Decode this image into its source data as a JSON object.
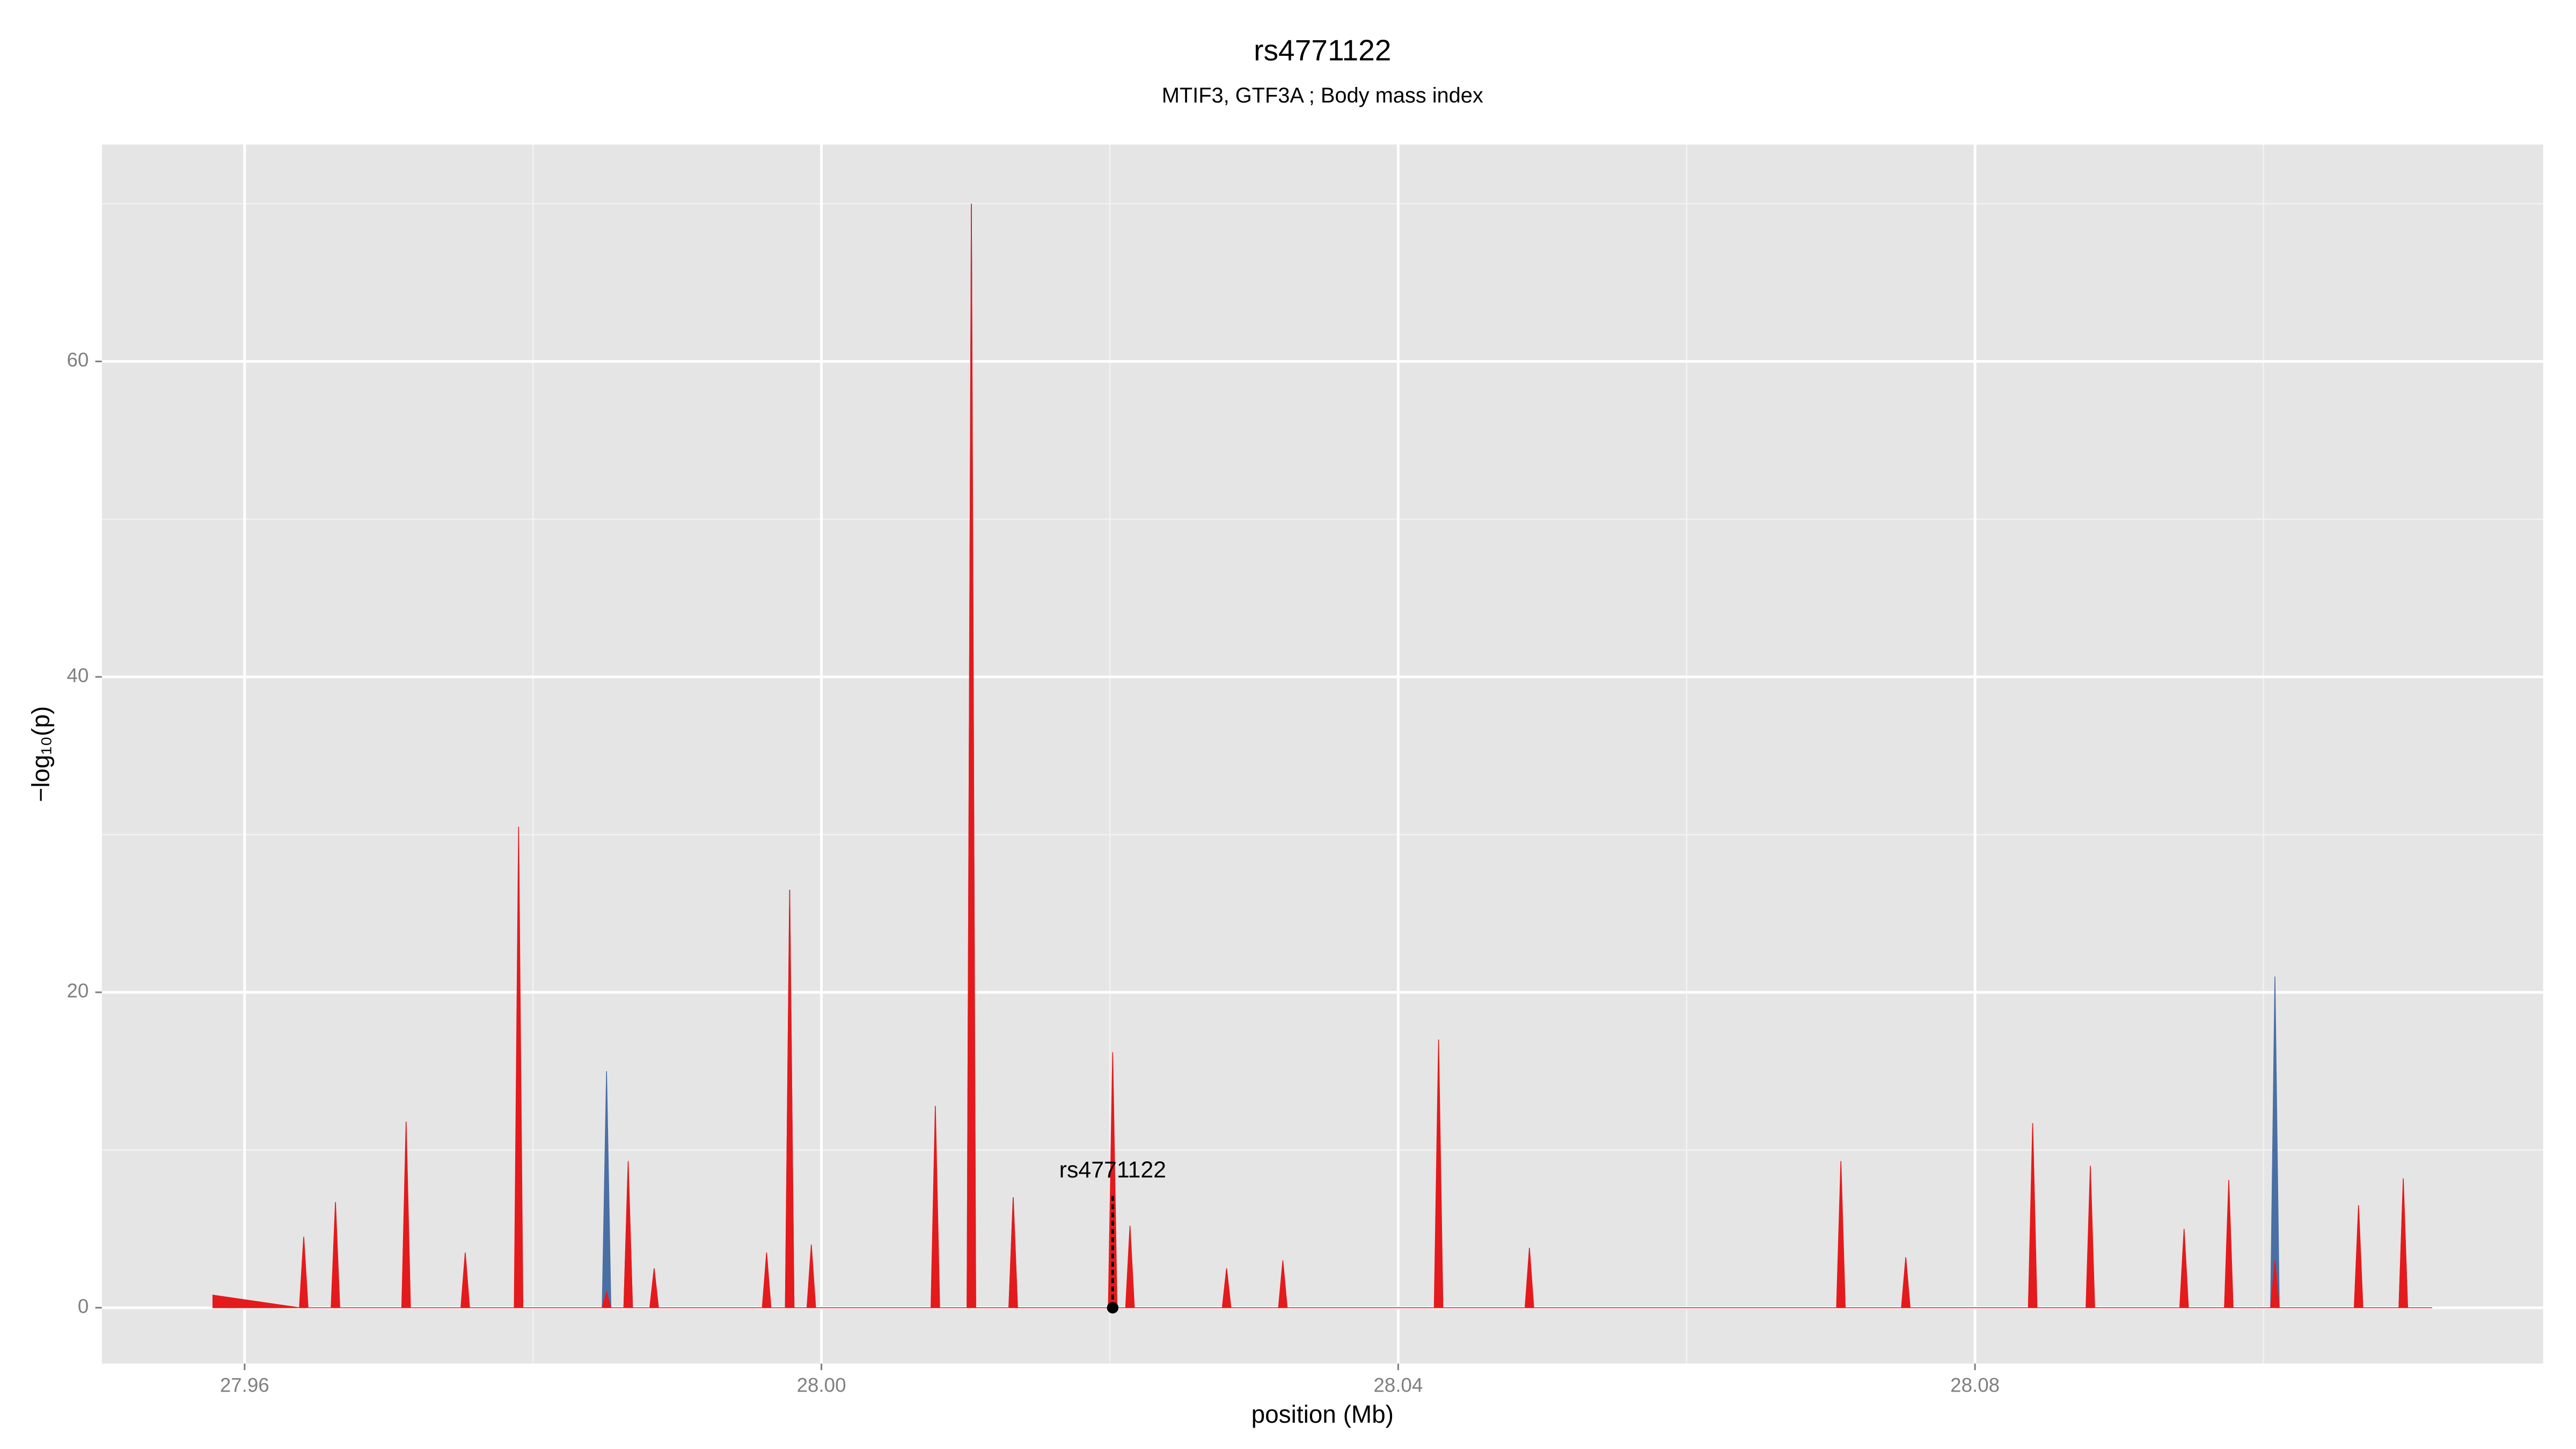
{
  "chart_data": {
    "type": "area",
    "title": "rs4771122",
    "subtitle": "MTIF3, GTF3A ; Body mass index",
    "xlabel": "position (Mb)",
    "ylabel": "−log₁₀(p)",
    "xlim": [
      27.9501,
      28.1194
    ],
    "ylim": [
      -3.54,
      73.75
    ],
    "xticks": [
      27.96,
      {
        "value": 28,
        "label": "28.00"
      },
      28.04,
      28.08
    ],
    "yticks": [
      0,
      20,
      40,
      60
    ],
    "xminor": [
      27.98,
      28.02,
      28.06,
      28.1
    ],
    "yminor": [
      10,
      30,
      50,
      70
    ],
    "grid": true,
    "x": [
      27.9578,
      27.9638,
      27.9641,
      27.9644,
      27.966,
      27.9663,
      27.9666,
      27.9709,
      27.9712,
      27.9715,
      27.975,
      27.9753,
      27.9756,
      27.9787,
      27.979,
      27.9793,
      27.9848,
      27.9851,
      27.9854,
      27.9863,
      27.9866,
      27.9869,
      27.9881,
      27.9884,
      27.9887,
      27.9959,
      27.9962,
      27.9965,
      27.9975,
      27.9978,
      27.9981,
      27.999,
      27.9993,
      27.9996,
      28.0076,
      28.0079,
      28.0082,
      28.0101,
      28.0104,
      28.0107,
      28.013,
      28.0133,
      28.0136,
      28.0199,
      28.0202,
      28.0205,
      28.0211,
      28.0214,
      28.0217,
      28.0278,
      28.0281,
      28.0284,
      28.0317,
      28.032,
      28.0323,
      28.0425,
      28.0428,
      28.0431,
      28.0488,
      28.0491,
      28.0494,
      28.0704,
      28.0707,
      28.071,
      28.0749,
      28.0752,
      28.0755,
      28.0837,
      28.084,
      28.0843,
      28.0877,
      28.088,
      28.0883,
      28.0942,
      28.0945,
      28.0948,
      28.0973,
      28.0976,
      28.0979,
      28.1005,
      28.1008,
      28.1011,
      28.1063,
      28.1066,
      28.1069,
      28.1094,
      28.1097,
      28.11,
      28.1117
    ],
    "series": [
      {
        "name": "blue",
        "color": "#4a6fa5",
        "values": [
          0,
          0,
          0,
          0,
          0,
          0,
          0,
          0,
          0,
          0,
          0,
          0,
          0,
          0,
          0,
          0,
          0,
          15,
          0,
          0,
          9,
          0,
          0,
          0,
          0,
          0,
          0,
          0,
          0,
          26.5,
          0,
          0,
          0,
          0,
          0,
          0,
          0,
          0,
          70,
          0,
          0,
          7,
          0,
          0,
          0,
          0,
          0,
          0,
          0,
          0,
          0,
          0,
          0,
          0,
          0,
          0,
          0,
          0,
          0,
          0,
          0,
          0,
          0,
          0,
          0,
          0,
          0,
          0,
          0,
          0,
          0,
          0,
          0,
          0,
          0,
          0,
          0,
          0,
          0,
          0,
          21,
          0,
          0,
          0,
          0,
          0,
          8,
          0,
          0
        ]
      },
      {
        "name": "red",
        "color": "#e41a1c",
        "values": [
          0.8,
          0,
          4.5,
          0,
          0,
          6.7,
          0,
          0,
          11.8,
          0,
          0,
          3.5,
          0,
          0,
          30.5,
          0,
          0,
          1,
          0,
          0,
          9.3,
          0,
          0,
          2.5,
          0,
          0,
          3.5,
          0,
          0,
          26.5,
          0,
          0,
          4,
          0,
          0,
          12.8,
          0,
          0,
          70,
          0,
          0,
          7,
          0,
          0,
          16.2,
          0,
          0,
          5.2,
          0,
          0,
          2.5,
          0,
          0,
          3,
          0,
          0,
          17,
          0,
          0,
          3.8,
          0,
          0,
          9.3,
          0,
          0,
          3.2,
          0,
          0,
          11.7,
          0,
          0,
          9,
          0,
          0,
          5,
          0,
          0,
          8.1,
          0,
          0,
          3,
          0,
          0,
          6.5,
          0,
          0,
          8.2,
          0,
          0
        ]
      }
    ],
    "highlight": {
      "label": "rs4771122",
      "x": 28.0202,
      "y": 0
    }
  }
}
